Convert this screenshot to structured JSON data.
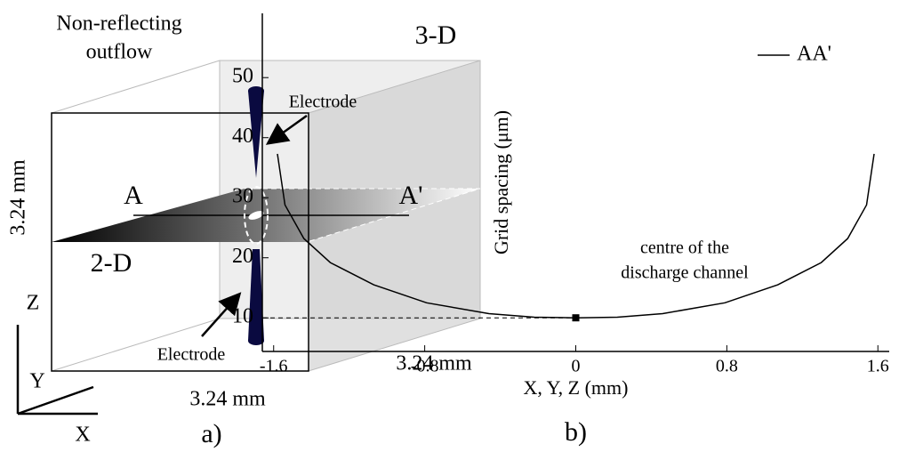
{
  "diagram": {
    "outflow_label": [
      "Non-reflecting",
      "outflow"
    ],
    "label_3d": "3-D",
    "label_2d": "2-D",
    "electrode_top": "Electrode",
    "electrode_bottom": "Electrode",
    "dim_height": "3.24 mm",
    "dim_width": "3.24 mm",
    "dim_depth": "3.24 mm",
    "point_a": "A",
    "point_a_prime": "A'",
    "axis_z": "Z",
    "axis_y": "Y",
    "axis_x": "X",
    "panel": "a)"
  },
  "chart_data": {
    "type": "line",
    "panel": "b)",
    "x_label": "X, Y, Z (mm)",
    "y_label": "Grid spacing (μm)",
    "annotation": [
      "centre of the",
      "discharge channel"
    ],
    "x": [
      -1.58,
      -1.54,
      -1.44,
      -1.3,
      -1.07,
      -0.79,
      -0.46,
      -0.22,
      0,
      0.22,
      0.46,
      0.79,
      1.07,
      1.3,
      1.44,
      1.54,
      1.58
    ],
    "series": [
      {
        "name": "AA'",
        "color": "#000000",
        "values": [
          37.3,
          28.8,
          23.2,
          19.2,
          15.5,
          12.5,
          10.7,
          10.1,
          10,
          10.1,
          10.7,
          12.5,
          15.5,
          19.2,
          23.2,
          28.8,
          37.3
        ]
      }
    ],
    "marker": {
      "x": 0,
      "y": 10
    },
    "xlim": [
      -1.66,
      1.66
    ],
    "xticks": [
      -1.6,
      -0.8,
      0,
      0.8,
      1.6
    ],
    "ylim": [
      4.4,
      60.7
    ],
    "yticks": [
      10,
      20,
      30,
      40,
      50
    ],
    "legend": "upper right"
  }
}
